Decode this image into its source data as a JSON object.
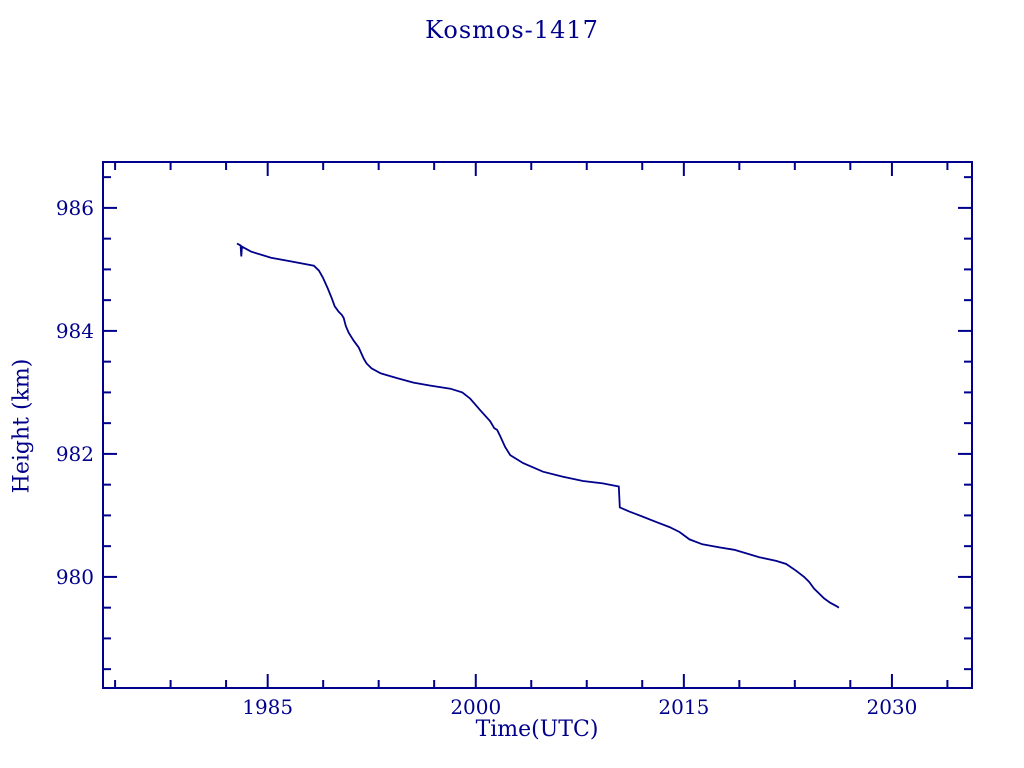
{
  "page": {
    "background_color": "#ffffff",
    "accent_color": "#00008B"
  },
  "chart_data": {
    "type": "line",
    "title": "Kosmos-1417",
    "xlabel": "Time(UTC)",
    "ylabel": "Height (km)",
    "xlim": [
      1973.2,
      2035.7
    ],
    "ylim": [
      978.21,
      986.73
    ],
    "grid": false,
    "legend": "none",
    "frame": "box-with-inward-ticks",
    "line_color": "#00008B",
    "x_major_ticks": [
      {
        "value": 1985,
        "label": "1985"
      },
      {
        "value": 2000,
        "label": "2000"
      },
      {
        "value": 2015,
        "label": "2015"
      },
      {
        "value": 2030,
        "label": "2030"
      }
    ],
    "x_minor_ticks": [
      1974,
      1978,
      1982,
      1989,
      1993,
      1997,
      2004,
      2008,
      2012,
      2019,
      2023,
      2027,
      2034
    ],
    "y_major_ticks": [
      {
        "value": 980,
        "label": "980"
      },
      {
        "value": 982,
        "label": "982"
      },
      {
        "value": 984,
        "label": "984"
      },
      {
        "value": 986,
        "label": "986"
      }
    ],
    "y_minor_ticks": [
      978.5,
      979.0,
      979.5,
      980.5,
      981.0,
      981.5,
      982.5,
      983.0,
      983.5,
      984.5,
      985.0,
      985.5,
      986.5
    ],
    "series": [
      {
        "name": "orbit-height",
        "points": [
          [
            1982.79,
            985.42
          ],
          [
            1983.05,
            985.39
          ],
          [
            1983.1,
            985.21
          ],
          [
            1983.14,
            985.37
          ],
          [
            1983.8,
            985.29
          ],
          [
            1985.24,
            985.19
          ],
          [
            1986.67,
            985.13
          ],
          [
            1988.33,
            985.06
          ],
          [
            1988.69,
            984.98
          ],
          [
            1988.97,
            984.87
          ],
          [
            1989.33,
            984.69
          ],
          [
            1989.62,
            984.53
          ],
          [
            1989.83,
            984.4
          ],
          [
            1990.12,
            984.31
          ],
          [
            1990.34,
            984.26
          ],
          [
            1990.48,
            984.21
          ],
          [
            1990.63,
            984.08
          ],
          [
            1990.84,
            983.97
          ],
          [
            1991.2,
            983.84
          ],
          [
            1991.56,
            983.73
          ],
          [
            1991.92,
            983.55
          ],
          [
            1992.13,
            983.47
          ],
          [
            1992.49,
            983.39
          ],
          [
            1993.14,
            983.31
          ],
          [
            1994.36,
            983.23
          ],
          [
            1995.51,
            983.16
          ],
          [
            1996.73,
            983.11
          ],
          [
            1998.17,
            983.06
          ],
          [
            1999.03,
            983.0
          ],
          [
            1999.6,
            982.9
          ],
          [
            2000.32,
            982.71
          ],
          [
            2001.04,
            982.53
          ],
          [
            2001.33,
            982.42
          ],
          [
            2001.54,
            982.39
          ],
          [
            2001.76,
            982.29
          ],
          [
            2002.12,
            982.11
          ],
          [
            2002.48,
            981.98
          ],
          [
            2003.41,
            981.85
          ],
          [
            2004.85,
            981.71
          ],
          [
            2006.29,
            981.63
          ],
          [
            2007.73,
            981.56
          ],
          [
            2009.16,
            981.52
          ],
          [
            2010.31,
            981.47
          ],
          [
            2010.38,
            981.13
          ],
          [
            2011.1,
            981.06
          ],
          [
            2012.03,
            980.98
          ],
          [
            2013.04,
            980.89
          ],
          [
            2013.97,
            980.81
          ],
          [
            2014.69,
            980.73
          ],
          [
            2015.41,
            980.61
          ],
          [
            2016.34,
            980.53
          ],
          [
            2017.56,
            980.48
          ],
          [
            2018.64,
            980.44
          ],
          [
            2020.44,
            980.32
          ],
          [
            2021.66,
            980.26
          ],
          [
            2022.38,
            980.21
          ],
          [
            2023.1,
            980.1
          ],
          [
            2023.67,
            980.0
          ],
          [
            2024.03,
            979.92
          ],
          [
            2024.39,
            979.81
          ],
          [
            2024.75,
            979.73
          ],
          [
            2025.11,
            979.65
          ],
          [
            2025.54,
            979.58
          ],
          [
            2026.04,
            979.52
          ],
          [
            2026.18,
            979.5
          ]
        ]
      }
    ]
  }
}
